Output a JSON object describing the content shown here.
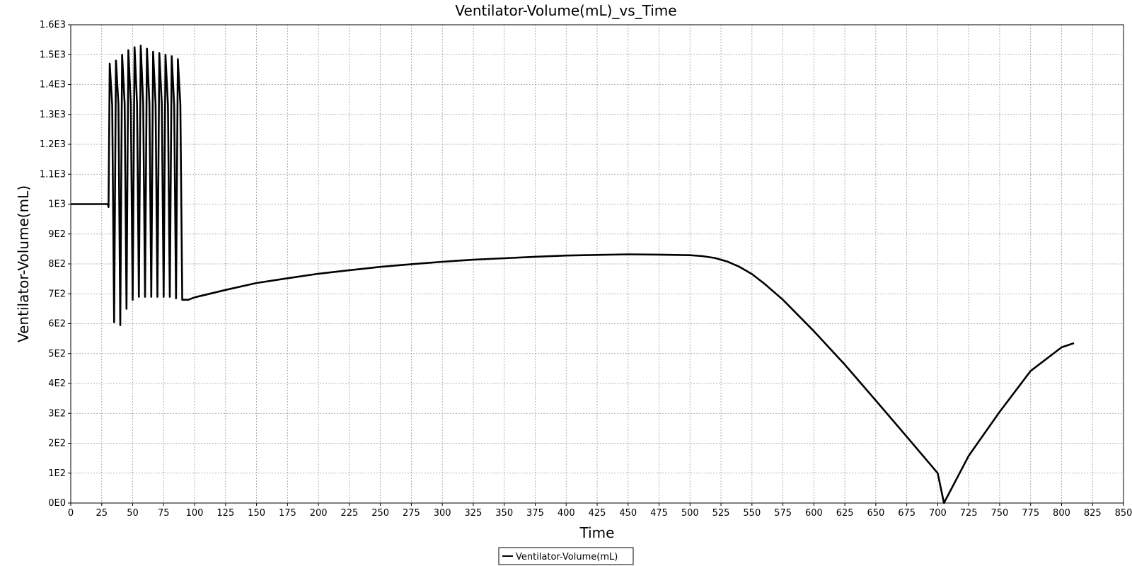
{
  "chart_data": {
    "type": "line",
    "title": "Ventilator-Volume(mL)_vs_Time",
    "xlabel": "Time",
    "ylabel": "Ventilator-Volume(mL)",
    "xlim": [
      0,
      850
    ],
    "ylim": [
      0,
      1600
    ],
    "x_ticks": [
      0,
      25,
      50,
      75,
      100,
      125,
      150,
      175,
      200,
      225,
      250,
      275,
      300,
      325,
      350,
      375,
      400,
      425,
      450,
      475,
      500,
      525,
      550,
      575,
      600,
      625,
      650,
      675,
      700,
      725,
      750,
      775,
      800,
      825,
      850
    ],
    "x_tick_labels": [
      "0",
      "25",
      "50",
      "75",
      "100",
      "125",
      "150",
      "175",
      "200",
      "225",
      "250",
      "275",
      "300",
      "325",
      "350",
      "375",
      "400",
      "425",
      "450",
      "475",
      "500",
      "525",
      "550",
      "575",
      "600",
      "625",
      "650",
      "675",
      "700",
      "725",
      "750",
      "775",
      "800",
      "825",
      "850"
    ],
    "y_ticks": [
      0,
      100,
      200,
      300,
      400,
      500,
      600,
      700,
      800,
      900,
      1000,
      1100,
      1200,
      1300,
      1400,
      1500,
      1600
    ],
    "y_tick_labels": [
      "0E0",
      "1E2",
      "2E2",
      "3E2",
      "4E2",
      "5E2",
      "6E2",
      "7E2",
      "8E2",
      "9E2",
      "1E3",
      "1.1E3",
      "1.2E3",
      "1.3E3",
      "1.4E3",
      "1.5E3",
      "1.6E3"
    ],
    "grid": true,
    "legend_position": "bottom-center",
    "series": [
      {
        "name": "Ventilator-Volume(mL)",
        "color": "#000000",
        "x": [
          0,
          30,
          30.5,
          31.5,
          33.5,
          35,
          36.5,
          38.5,
          40,
          41.5,
          43.5,
          45,
          46.5,
          48.5,
          50,
          51.5,
          53.5,
          55,
          56.5,
          58.5,
          60,
          61.5,
          63.5,
          65,
          66.5,
          68.5,
          70,
          71.5,
          73.5,
          75,
          76.5,
          78.5,
          80,
          81.5,
          83.5,
          85,
          86.5,
          88.5,
          90,
          95,
          100,
          125,
          150,
          175,
          200,
          225,
          250,
          275,
          300,
          325,
          350,
          375,
          400,
          425,
          450,
          475,
          500,
          510,
          520,
          530,
          540,
          550,
          560,
          575,
          600,
          625,
          650,
          675,
          700,
          705,
          725,
          750,
          775,
          800,
          810
        ],
        "y": [
          1000,
          1000,
          990,
          1470,
          1330,
          605,
          1480,
          1335,
          595,
          1500,
          1335,
          650,
          1515,
          1335,
          680,
          1525,
          1335,
          690,
          1530,
          1335,
          690,
          1520,
          1335,
          690,
          1510,
          1335,
          690,
          1505,
          1335,
          690,
          1500,
          1330,
          690,
          1495,
          1330,
          685,
          1485,
          1335,
          680,
          680,
          688,
          713,
          736,
          752,
          767,
          779,
          790,
          799,
          807,
          814,
          819,
          824,
          828,
          830,
          832,
          831,
          829,
          826,
          820,
          808,
          790,
          766,
          734,
          680,
          575,
          463,
          343,
          222,
          100,
          0,
          158,
          305,
          442,
          521,
          535
        ]
      }
    ]
  }
}
